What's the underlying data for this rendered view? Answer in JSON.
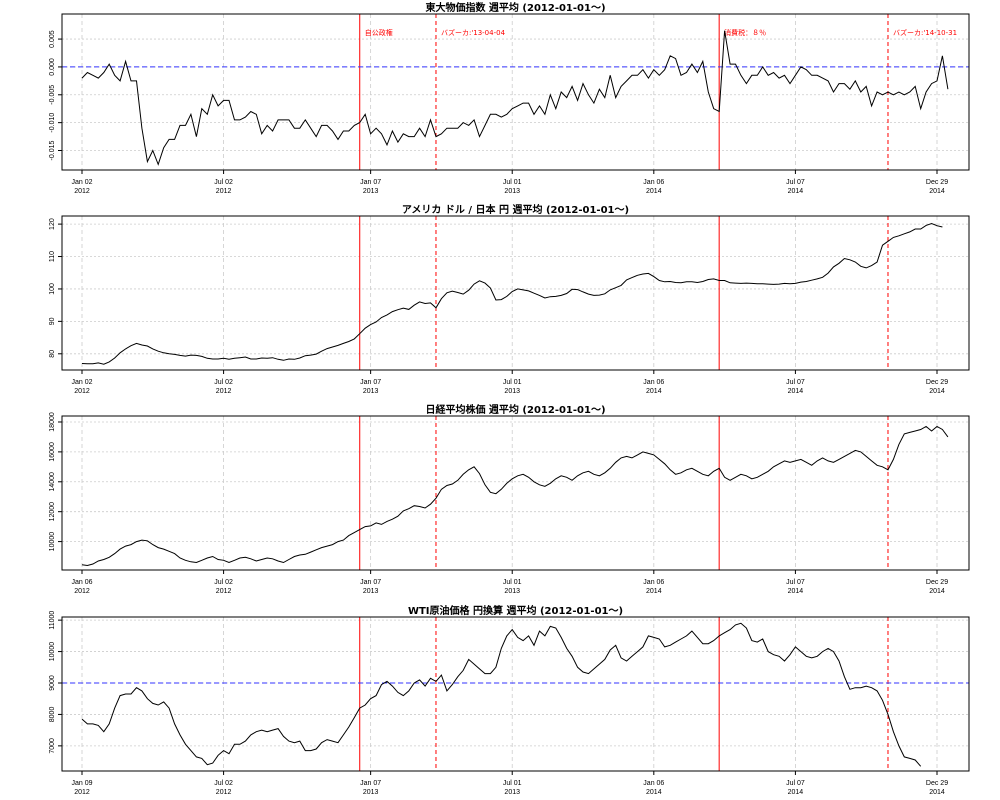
{
  "chart_data": [
    {
      "type": "line",
      "title": "東大物価指数 週平均 (2012-01-01〜)",
      "xlabel": "",
      "ylabel": "",
      "xlim": [
        0,
        157
      ],
      "ylim": [
        -0.0185,
        0.0095
      ],
      "x_ticks": [
        {
          "pos": 0,
          "label": "Jan 02",
          "year": "2012"
        },
        {
          "pos": 26,
          "label": "Jul 02",
          "year": "2012"
        },
        {
          "pos": 53,
          "label": "Jan 07",
          "year": "2013"
        },
        {
          "pos": 79,
          "label": "Jul 01",
          "year": "2013"
        },
        {
          "pos": 105,
          "label": "Jan 06",
          "year": "2014"
        },
        {
          "pos": 131,
          "label": "Jul 07",
          "year": "2014"
        },
        {
          "pos": 157,
          "label": "Dec 29",
          "year": "2014"
        }
      ],
      "y_ticks": [
        {
          "value": 0.005,
          "label": "0.005"
        },
        {
          "value": 0.0,
          "label": "0.000"
        },
        {
          "value": -0.005,
          "label": "-0.005"
        },
        {
          "value": -0.01,
          "label": "-0.010"
        },
        {
          "value": -0.015,
          "label": "-0.015"
        }
      ],
      "hline": 0.0,
      "events": [
        {
          "pos": 51,
          "style": "solid",
          "label": "自公政権"
        },
        {
          "pos": 65,
          "style": "dashed",
          "label": "バズーカ:'13-04-04"
        },
        {
          "pos": 117,
          "style": "solid",
          "label": "消費税：８％"
        },
        {
          "pos": 148,
          "style": "dashed",
          "label": "バズーカ:'14-10-31"
        }
      ],
      "series": [
        {
          "values": [
            -0.002,
            -0.001,
            -0.0015,
            -0.002,
            -0.001,
            0.0005,
            -0.0015,
            -0.0025,
            0.001,
            -0.0025,
            -0.0025,
            -0.011,
            -0.017,
            -0.015,
            -0.0175,
            -0.0145,
            -0.013,
            -0.013,
            -0.0105,
            -0.0105,
            -0.0085,
            -0.0125,
            -0.0075,
            -0.0085,
            -0.005,
            -0.007,
            -0.006,
            -0.006,
            -0.0095,
            -0.0095,
            -0.009,
            -0.008,
            -0.0085,
            -0.012,
            -0.0105,
            -0.0115,
            -0.0095,
            -0.0095,
            -0.0095,
            -0.011,
            -0.011,
            -0.0095,
            -0.011,
            -0.0125,
            -0.0105,
            -0.0105,
            -0.0115,
            -0.013,
            -0.0115,
            -0.0115,
            -0.0105,
            -0.01,
            -0.0085,
            -0.012,
            -0.011,
            -0.012,
            -0.014,
            -0.0115,
            -0.0135,
            -0.012,
            -0.0125,
            -0.0125,
            -0.011,
            -0.0125,
            -0.0095,
            -0.0125,
            -0.012,
            -0.011,
            -0.011,
            -0.011,
            -0.01,
            -0.0105,
            -0.0095,
            -0.0125,
            -0.0105,
            -0.0085,
            -0.0085,
            -0.009,
            -0.0085,
            -0.0075,
            -0.007,
            -0.0065,
            -0.0065,
            -0.0085,
            -0.007,
            -0.0085,
            -0.005,
            -0.0075,
            -0.0045,
            -0.0055,
            -0.0035,
            -0.006,
            -0.003,
            -0.005,
            -0.0065,
            -0.004,
            -0.0055,
            -0.0015,
            -0.0055,
            -0.0035,
            -0.0025,
            -0.0015,
            -0.0015,
            -0.0005,
            -0.002,
            -0.0005,
            -0.0015,
            -0.0005,
            0.002,
            0.0015,
            -0.0015,
            -0.001,
            0.0005,
            -0.001,
            0.001,
            -0.0045,
            -0.0075,
            -0.008,
            0.0065,
            0.0005,
            0.0005,
            -0.0015,
            -0.003,
            -0.0015,
            -0.0015,
            0.0,
            -0.0015,
            -0.001,
            -0.002,
            -0.0015,
            -0.003,
            -0.0015,
            0.0,
            -0.0005,
            -0.0015,
            -0.0015,
            -0.002,
            -0.0025,
            -0.0045,
            -0.003,
            -0.003,
            -0.004,
            -0.0025,
            -0.0045,
            -0.0035,
            -0.007,
            -0.0045,
            -0.005,
            -0.0045,
            -0.005,
            -0.0045,
            -0.005,
            -0.0045,
            -0.0035,
            -0.0075,
            -0.0045,
            -0.003,
            -0.0025,
            0.002,
            -0.004
          ]
        }
      ]
    },
    {
      "type": "line",
      "title": "アメリカ ドル / 日本 円 週平均 (2012-01-01〜)",
      "xlabel": "",
      "ylabel": "",
      "xlim": [
        0,
        157
      ],
      "ylim": [
        75,
        122.5
      ],
      "x_ticks": [
        {
          "pos": 0,
          "label": "Jan 02",
          "year": "2012"
        },
        {
          "pos": 26,
          "label": "Jul 02",
          "year": "2012"
        },
        {
          "pos": 53,
          "label": "Jan 07",
          "year": "2013"
        },
        {
          "pos": 79,
          "label": "Jul 01",
          "year": "2013"
        },
        {
          "pos": 105,
          "label": "Jan 06",
          "year": "2014"
        },
        {
          "pos": 131,
          "label": "Jul 07",
          "year": "2014"
        },
        {
          "pos": 157,
          "label": "Dec 29",
          "year": "2014"
        }
      ],
      "y_ticks": [
        {
          "value": 80,
          "label": "80"
        },
        {
          "value": 90,
          "label": "90"
        },
        {
          "value": 100,
          "label": "100"
        },
        {
          "value": 110,
          "label": "110"
        },
        {
          "value": 120,
          "label": "120"
        }
      ],
      "events": [
        {
          "pos": 51,
          "style": "solid"
        },
        {
          "pos": 65,
          "style": "dashed"
        },
        {
          "pos": 117,
          "style": "solid"
        },
        {
          "pos": 148,
          "style": "dashed"
        }
      ],
      "series": [
        {
          "values": [
            77.0,
            76.9,
            76.9,
            77.2,
            76.8,
            77.5,
            78.7,
            80.3,
            81.5,
            82.5,
            83.2,
            82.7,
            82.4,
            81.5,
            80.8,
            80.3,
            80.0,
            79.8,
            79.5,
            79.3,
            79.6,
            79.5,
            79.2,
            78.6,
            78.4,
            78.4,
            78.6,
            78.3,
            78.6,
            78.8,
            79.0,
            78.4,
            78.4,
            78.7,
            78.6,
            78.8,
            78.3,
            78.0,
            78.4,
            78.3,
            78.7,
            79.4,
            79.6,
            79.9,
            80.8,
            81.6,
            82.1,
            82.6,
            83.2,
            83.8,
            84.6,
            86.2,
            87.9,
            89.0,
            89.8,
            91.2,
            92.0,
            93.0,
            93.6,
            94.1,
            93.7,
            95.0,
            96.0,
            95.5,
            95.7,
            94.2,
            97.0,
            98.8,
            99.3,
            98.9,
            98.4,
            99.6,
            101.5,
            102.5,
            101.8,
            100.3,
            96.6,
            96.7,
            97.7,
            99.2,
            100.0,
            99.7,
            99.4,
            98.7,
            98.0,
            97.2,
            97.6,
            97.7,
            98.0,
            98.6,
            99.9,
            99.8,
            99.1,
            98.4,
            98.0,
            98.1,
            98.5,
            99.7,
            100.4,
            101.1,
            102.8,
            103.5,
            104.2,
            104.6,
            104.8,
            103.8,
            102.6,
            102.2,
            102.3,
            102.0,
            101.9,
            102.2,
            102.2,
            102.0,
            102.3,
            102.9,
            103.1,
            102.6,
            102.6,
            101.9,
            101.8,
            101.7,
            101.8,
            101.7,
            101.6,
            101.6,
            101.5,
            101.4,
            101.5,
            101.7,
            101.6,
            101.7,
            102.1,
            102.3,
            102.7,
            103.1,
            103.6,
            104.9,
            106.8,
            107.9,
            109.4,
            109.0,
            108.3,
            107.0,
            106.5,
            107.2,
            108.3,
            113.5,
            114.7,
            115.9,
            116.4,
            117.0,
            117.6,
            118.5,
            118.5,
            119.6,
            120.2,
            119.5,
            119.1
          ]
        }
      ]
    },
    {
      "type": "line",
      "title": "日経平均株価 週平均 (2012-01-01〜)",
      "xlabel": "",
      "ylabel": "",
      "xlim": [
        0,
        157
      ],
      "ylim": [
        8100,
        18400
      ],
      "x_ticks": [
        {
          "pos": 0,
          "label": "Jan 06",
          "year": "2012"
        },
        {
          "pos": 26,
          "label": "Jul 02",
          "year": "2012"
        },
        {
          "pos": 53,
          "label": "Jan 07",
          "year": "2013"
        },
        {
          "pos": 79,
          "label": "Jul 01",
          "year": "2013"
        },
        {
          "pos": 105,
          "label": "Jan 06",
          "year": "2014"
        },
        {
          "pos": 131,
          "label": "Jul 07",
          "year": "2014"
        },
        {
          "pos": 157,
          "label": "Dec 29",
          "year": "2014"
        }
      ],
      "y_ticks": [
        {
          "value": 10000,
          "label": "10000"
        },
        {
          "value": 12000,
          "label": "12000"
        },
        {
          "value": 14000,
          "label": "14000"
        },
        {
          "value": 16000,
          "label": "16000"
        },
        {
          "value": 18000,
          "label": "18000"
        }
      ],
      "events": [
        {
          "pos": 51,
          "style": "solid"
        },
        {
          "pos": 65,
          "style": "dashed"
        },
        {
          "pos": 117,
          "style": "solid"
        },
        {
          "pos": 148,
          "style": "dashed"
        }
      ],
      "series": [
        {
          "values": [
            8450,
            8400,
            8500,
            8700,
            8800,
            8950,
            9200,
            9500,
            9700,
            9800,
            10000,
            10100,
            10050,
            9800,
            9600,
            9500,
            9350,
            9200,
            8900,
            8750,
            8650,
            8600,
            8750,
            8900,
            9000,
            8800,
            8750,
            8600,
            8750,
            8900,
            8950,
            8850,
            8700,
            8800,
            8900,
            8850,
            8700,
            8600,
            8800,
            9000,
            9100,
            9150,
            9300,
            9450,
            9600,
            9700,
            9800,
            10000,
            10100,
            10400,
            10600,
            10800,
            11000,
            11050,
            11250,
            11150,
            11350,
            11500,
            11700,
            12050,
            12200,
            12400,
            12350,
            12250,
            12500,
            12900,
            13500,
            13750,
            13850,
            14100,
            14500,
            14800,
            15000,
            14550,
            13800,
            13300,
            13200,
            13500,
            13900,
            14200,
            14400,
            14500,
            14300,
            14000,
            13800,
            13700,
            13900,
            14200,
            14400,
            14300,
            14100,
            14400,
            14600,
            14700,
            14500,
            14400,
            14600,
            14900,
            15300,
            15600,
            15700,
            15600,
            15800,
            16000,
            15900,
            15800,
            15500,
            15200,
            14800,
            14500,
            14600,
            14800,
            14900,
            14700,
            14500,
            14400,
            14700,
            14900,
            14300,
            14100,
            14300,
            14500,
            14400,
            14200,
            14300,
            14500,
            14700,
            15000,
            15200,
            15400,
            15300,
            15400,
            15500,
            15300,
            15100,
            15400,
            15600,
            15400,
            15300,
            15500,
            15700,
            15900,
            16100,
            16000,
            15700,
            15400,
            15100,
            15000,
            14800,
            15500,
            16500,
            17200,
            17300,
            17400,
            17500,
            17700,
            17400,
            17700,
            17500,
            17000
          ]
        }
      ]
    },
    {
      "type": "line",
      "title": "WTI原油価格  円換算 週平均 (2012-01-01〜)",
      "xlabel": "",
      "ylabel": "",
      "xlim": [
        0,
        157
      ],
      "ylim": [
        6200,
        11100
      ],
      "x_ticks": [
        {
          "pos": 0,
          "label": "Jan 09",
          "year": "2012"
        },
        {
          "pos": 26,
          "label": "Jul 02",
          "year": "2012"
        },
        {
          "pos": 53,
          "label": "Jan 07",
          "year": "2013"
        },
        {
          "pos": 79,
          "label": "Jul 01",
          "year": "2013"
        },
        {
          "pos": 105,
          "label": "Jan 06",
          "year": "2014"
        },
        {
          "pos": 131,
          "label": "Jul 07",
          "year": "2014"
        },
        {
          "pos": 157,
          "label": "Dec 29",
          "year": "2014"
        }
      ],
      "y_ticks": [
        {
          "value": 7000,
          "label": "7000"
        },
        {
          "value": 8000,
          "label": "8000"
        },
        {
          "value": 9000,
          "label": "9000"
        },
        {
          "value": 10000,
          "label": "10000"
        },
        {
          "value": 11000,
          "label": "11000"
        }
      ],
      "hline": 9000,
      "events": [
        {
          "pos": 51,
          "style": "solid"
        },
        {
          "pos": 65,
          "style": "dashed"
        },
        {
          "pos": 117,
          "style": "solid"
        },
        {
          "pos": 148,
          "style": "dashed"
        }
      ],
      "series": [
        {
          "values": [
            7850,
            7700,
            7700,
            7650,
            7450,
            7700,
            8200,
            8600,
            8650,
            8650,
            8850,
            8750,
            8500,
            8350,
            8300,
            8400,
            8200,
            7700,
            7350,
            7050,
            6850,
            6650,
            6600,
            6400,
            6450,
            6700,
            6850,
            6750,
            7050,
            7050,
            7150,
            7350,
            7450,
            7500,
            7450,
            7500,
            7550,
            7300,
            7150,
            7100,
            7150,
            6850,
            6850,
            6900,
            7100,
            7200,
            7150,
            7100,
            7350,
            7600,
            7900,
            8200,
            8300,
            8500,
            8600,
            8950,
            9050,
            8900,
            8700,
            8600,
            8750,
            9000,
            9100,
            8900,
            9150,
            9050,
            9250,
            8750,
            8950,
            9200,
            9400,
            9750,
            9600,
            9450,
            9300,
            9300,
            9500,
            10100,
            10500,
            10700,
            10450,
            10350,
            10500,
            10200,
            10650,
            10500,
            10800,
            10750,
            10450,
            10100,
            9850,
            9500,
            9350,
            9300,
            9450,
            9600,
            9750,
            10050,
            10200,
            9800,
            9700,
            9850,
            10000,
            10150,
            10500,
            10450,
            10400,
            10150,
            10200,
            10300,
            10400,
            10500,
            10650,
            10450,
            10250,
            10250,
            10350,
            10500,
            10600,
            10700,
            10850,
            10900,
            10750,
            10350,
            10300,
            10400,
            10000,
            9900,
            9850,
            9700,
            9900,
            10150,
            10000,
            9850,
            9800,
            9850,
            10000,
            10100,
            10000,
            9700,
            9200,
            8800,
            8850,
            8850,
            8900,
            8850,
            8750,
            8450,
            8000,
            7450,
            7000,
            6650,
            6600,
            6550,
            6350
          ]
        }
      ]
    }
  ]
}
